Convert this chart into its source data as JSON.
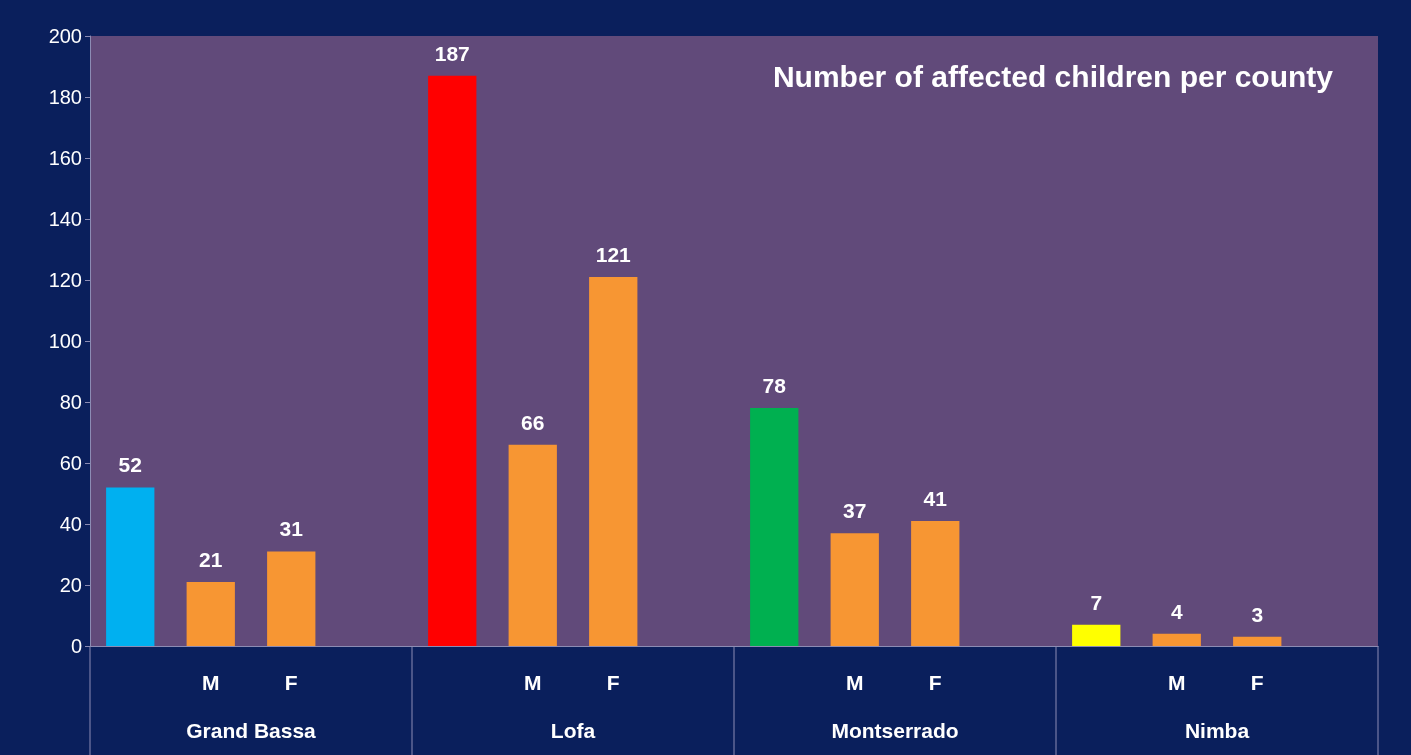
{
  "chart_data": {
    "type": "bar",
    "title": "Number of affected children per county",
    "categories": [
      null,
      "M",
      "F",
      null,
      null,
      "M",
      "F",
      null,
      null,
      "M",
      "F",
      null,
      null,
      "M",
      "F",
      null
    ],
    "values": [
      52,
      21,
      31,
      null,
      187,
      66,
      121,
      null,
      78,
      37,
      41,
      null,
      7,
      4,
      3,
      null
    ],
    "colors": [
      "#00b0f0",
      "#f79633",
      "#f79633",
      "#f79633",
      "#ff0000",
      "#f79633",
      "#f79633",
      "#f79633",
      "#00b050",
      "#f79633",
      "#f79633",
      "#f79633",
      "#ffff00",
      "#f79633",
      "#f79633",
      "#f79633"
    ],
    "annotations": [
      "Grand Bassa",
      "Lofa",
      "Montserrado",
      "Nimba"
    ],
    "ylim": [
      0,
      200
    ],
    "yticks": [
      0,
      20,
      40,
      60,
      80,
      100,
      120,
      140,
      160,
      180,
      200
    ],
    "grid": false,
    "data_labels": true
  }
}
